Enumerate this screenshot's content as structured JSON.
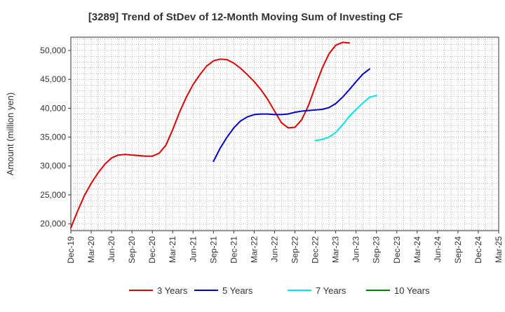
{
  "chart_data": {
    "type": "line",
    "title": "[3289]  Trend of StDev of 12-Month Moving Sum of Investing CF",
    "xlabel": "",
    "ylabel": "Amount (million yen)",
    "x_ticks": [
      "Dec-19",
      "Mar-20",
      "Jun-20",
      "Sep-20",
      "Dec-20",
      "Mar-21",
      "Jun-21",
      "Sep-21",
      "Dec-21",
      "Mar-22",
      "Jun-22",
      "Sep-22",
      "Dec-22",
      "Mar-23",
      "Jun-23",
      "Sep-23",
      "Dec-23",
      "Mar-24",
      "Jun-24",
      "Sep-24",
      "Dec-24",
      "Mar-25"
    ],
    "y_ticks": [
      20000,
      25000,
      30000,
      35000,
      40000,
      45000,
      50000
    ],
    "y_tick_labels": [
      "20,000",
      "25,000",
      "30,000",
      "35,000",
      "40,000",
      "45,000",
      "50,000"
    ],
    "ylim": [
      18800,
      52300
    ],
    "grid": true,
    "legend_position": "bottom",
    "series": [
      {
        "name": "3 Years",
        "color": "#dd0000",
        "start_index": 0,
        "values": [
          19300,
          22200,
          24900,
          27000,
          28800,
          30300,
          31400,
          31900,
          32000,
          31900,
          31800,
          31700,
          31700,
          32200,
          33600,
          36300,
          39300,
          41900,
          44100,
          45800,
          47300,
          48200,
          48500,
          48400,
          47800,
          46900,
          45800,
          44600,
          43200,
          41500,
          39500,
          37500,
          36600,
          36700,
          38000,
          40500,
          43800,
          46900,
          49400,
          50900,
          51400,
          51300
        ]
      },
      {
        "name": "5 Years",
        "color": "#0000cc",
        "start_index": 21,
        "values": [
          30800,
          33100,
          35000,
          36600,
          37800,
          38500,
          38900,
          39000,
          39000,
          38900,
          38900,
          39000,
          39300,
          39500,
          39600,
          39700,
          39800,
          40100,
          40800,
          41900,
          43200,
          44600,
          45900,
          46800
        ]
      },
      {
        "name": "7 Years",
        "color": "#00e5ee",
        "start_index": 36,
        "values": [
          34400,
          34600,
          35000,
          35800,
          37100,
          38600,
          39800,
          40900,
          41900,
          42200
        ]
      },
      {
        "name": "10 Years",
        "color": "#008000",
        "start_index": 0,
        "values": []
      }
    ]
  }
}
